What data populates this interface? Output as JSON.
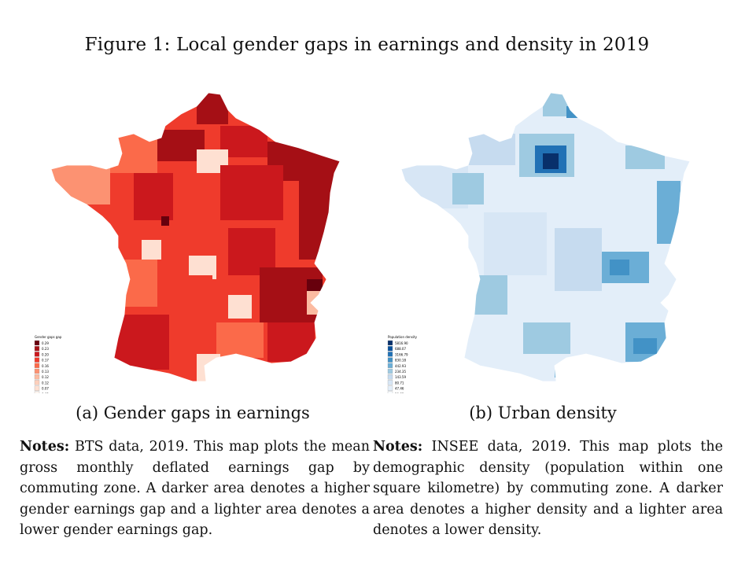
{
  "figure": {
    "title": "Figure 1: Local gender gaps in earnings and density in 2019"
  },
  "panel_a": {
    "caption": "(a) Gender gaps in earnings",
    "legend_title": "Gender gaps gap",
    "legend_labels": [
      "0.29",
      "0.23",
      "0.20",
      "0.17",
      "0.16",
      "0.13",
      "0.12",
      "0.12",
      "0.07",
      "0.02"
    ],
    "legend_colors": [
      "#67000d",
      "#a50f15",
      "#cb181d",
      "#ef3b2c",
      "#fb6a4a",
      "#fc9272",
      "#fcbba1",
      "#fdd0bc",
      "#fee0d2",
      "#fff5f0"
    ],
    "notes_label": "Notes:",
    "notes_text": " BTS data, 2019. This map plots the mean gross monthly deflated earnings gap by commuting zone. A darker area denotes a higher gender earnings gap and a lighter area denotes a lower gender earnings gap."
  },
  "panel_b": {
    "caption": "(b) Urban density",
    "legend_title": "Population density",
    "legend_labels": [
      "5816.90",
      "688.07",
      "3166.79",
      "830.18",
      "442.93",
      "234.35",
      "143.59",
      "80.71",
      "47.46",
      "10.83"
    ],
    "legend_colors": [
      "#08306b",
      "#08519c",
      "#2171b5",
      "#4292c6",
      "#6baed6",
      "#9ecae1",
      "#c6dbef",
      "#d7e6f5",
      "#e3eef9",
      "#f7fbff"
    ],
    "notes_label": "Notes:",
    "notes_text": " INSEE data, 2019. This map plots the demographic density (population within one square kilometre) by commuting zone. A darker area denotes a higher density and a lighter area denotes a lower density."
  }
}
